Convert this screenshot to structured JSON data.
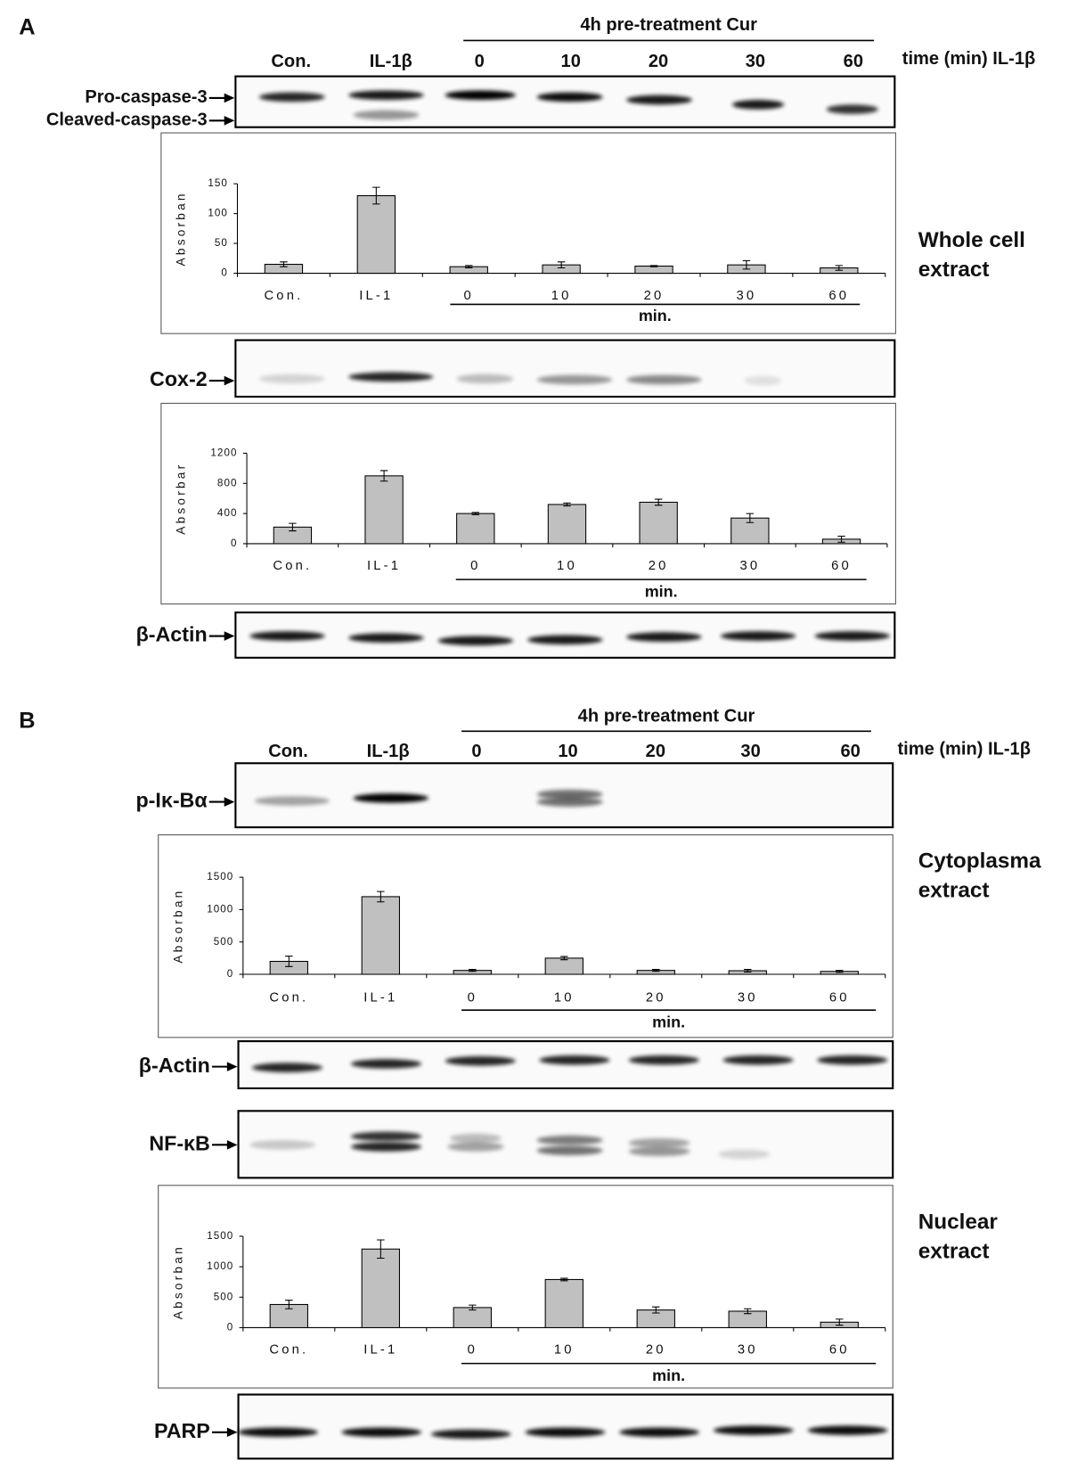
{
  "panels": [
    {
      "letter": "A",
      "header": "4h pre-treatment Cur",
      "lanes": [
        "Con.",
        "IL-1β",
        "0",
        "10",
        "20",
        "30",
        "60"
      ],
      "lane_axis": "time (min) IL-1β",
      "blots": [
        {
          "labels": [
            "Pro-caspase-3",
            "Cleaved-caspase-3"
          ]
        },
        {
          "labels": [
            "Cox-2"
          ]
        },
        {
          "labels": [
            "β-Actin"
          ]
        }
      ],
      "side_labels": [
        [
          "Whole cell",
          "extract"
        ]
      ]
    },
    {
      "letter": "B",
      "header": "4h pre-treatment Cur",
      "lanes": [
        "Con.",
        "IL-1β",
        "0",
        "10",
        "20",
        "30",
        "60"
      ],
      "lane_axis": "time (min) IL-1β",
      "blots": [
        {
          "labels": [
            "p-Iκ-Bα"
          ]
        },
        {
          "labels": [
            "β-Actin"
          ]
        },
        {
          "labels": [
            "NF-κB"
          ]
        },
        {
          "labels": [
            "PARP"
          ]
        }
      ],
      "side_labels": [
        [
          "Cytoplasma",
          "extract"
        ],
        [
          "Nuclear",
          "extract"
        ]
      ]
    }
  ],
  "chart_data": [
    {
      "type": "bar",
      "y_label": "Absorban",
      "x_group_label": "min.",
      "categories": [
        "Con.",
        "IL-1",
        "0",
        "10",
        "20",
        "30",
        "60"
      ],
      "values": [
        15,
        130,
        11,
        14,
        12,
        14,
        9
      ],
      "errors": [
        4,
        14,
        2,
        5,
        1,
        7,
        4
      ],
      "color": "#c0c0c0",
      "ylim": [
        0,
        150
      ],
      "yticks": [
        0,
        50,
        100,
        150
      ]
    },
    {
      "type": "bar",
      "y_label": "Absorbar",
      "x_group_label": "min.",
      "categories": [
        "Con.",
        "IL-1",
        "0",
        "10",
        "20",
        "30",
        "60"
      ],
      "values": [
        220,
        900,
        400,
        520,
        550,
        340,
        60
      ],
      "errors": [
        50,
        70,
        15,
        20,
        40,
        60,
        40
      ],
      "color": "#c0c0c0",
      "ylim": [
        0,
        1200
      ],
      "yticks": [
        0,
        400,
        800,
        1200
      ]
    },
    {
      "type": "bar",
      "y_label": "Absorban",
      "x_group_label": "min.",
      "categories": [
        "Con.",
        "IL-1",
        "0",
        "10",
        "20",
        "30",
        "60"
      ],
      "values": [
        200,
        1200,
        60,
        250,
        60,
        55,
        45
      ],
      "errors": [
        80,
        80,
        15,
        25,
        15,
        20,
        15
      ],
      "color": "#c0c0c0",
      "ylim": [
        0,
        1500
      ],
      "yticks": [
        0,
        500,
        1000,
        1500
      ]
    },
    {
      "type": "bar",
      "y_label": "Absorban",
      "x_group_label": "min.",
      "categories": [
        "Con.",
        "IL-1",
        "0",
        "10",
        "20",
        "30",
        "60"
      ],
      "values": [
        380,
        1290,
        330,
        790,
        290,
        270,
        90
      ],
      "errors": [
        70,
        150,
        40,
        20,
        50,
        40,
        50
      ],
      "color": "#c0c0c0",
      "ylim": [
        0,
        1500
      ],
      "yticks": [
        0,
        500,
        1000,
        1500
      ]
    }
  ]
}
